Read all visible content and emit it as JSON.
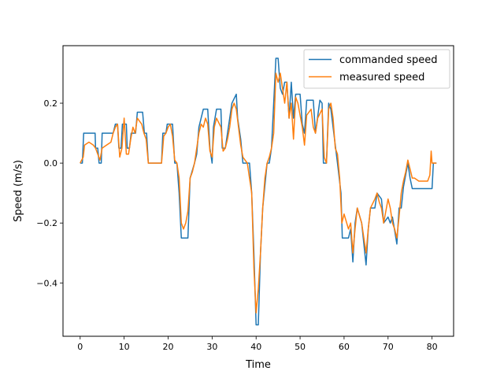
{
  "chart_data": {
    "type": "line",
    "title": "",
    "xlabel": "Time",
    "ylabel": "Speed (m/s)",
    "xlim": [
      -3.9,
      84.9
    ],
    "ylim": [
      -0.578,
      0.392
    ],
    "xticks": [
      0,
      10,
      20,
      30,
      40,
      50,
      60,
      70,
      80
    ],
    "yticks": [
      -0.4,
      -0.2,
      0.0,
      0.2
    ],
    "ytick_labels": [
      "−0.4",
      "−0.2",
      "0.0",
      "0.2"
    ],
    "grid": false,
    "legend_position": "top-right",
    "series": [
      {
        "name": "commanded speed",
        "color": "#1f77b4",
        "points": [
          [
            0,
            0
          ],
          [
            0.5,
            0
          ],
          [
            0.8,
            0.1
          ],
          [
            3.4,
            0.1
          ],
          [
            3.5,
            0.05
          ],
          [
            4,
            0.05
          ],
          [
            4.3,
            0
          ],
          [
            4.8,
            0
          ],
          [
            5,
            0.1
          ],
          [
            7.5,
            0.1
          ],
          [
            8,
            0.13
          ],
          [
            8.5,
            0.13
          ],
          [
            8.8,
            0.05
          ],
          [
            9.3,
            0.05
          ],
          [
            9.6,
            0.13
          ],
          [
            10.5,
            0.13
          ],
          [
            10.7,
            0.05
          ],
          [
            11.2,
            0.05
          ],
          [
            11.6,
            0.1
          ],
          [
            12.6,
            0.1
          ],
          [
            13,
            0.17
          ],
          [
            14.2,
            0.17
          ],
          [
            14.6,
            0.1
          ],
          [
            15.1,
            0.1
          ],
          [
            15.5,
            0
          ],
          [
            18.5,
            0
          ],
          [
            18.8,
            0.1
          ],
          [
            19.5,
            0.1
          ],
          [
            19.8,
            0.13
          ],
          [
            21,
            0.13
          ],
          [
            21.5,
            0
          ],
          [
            22,
            0
          ],
          [
            22.5,
            -0.1
          ],
          [
            23,
            -0.25
          ],
          [
            24.5,
            -0.25
          ],
          [
            25,
            -0.05
          ],
          [
            26,
            0
          ],
          [
            26.5,
            0.03
          ],
          [
            27,
            0.12
          ],
          [
            27.5,
            0.15
          ],
          [
            28,
            0.18
          ],
          [
            29,
            0.18
          ],
          [
            29.5,
            0.05
          ],
          [
            30,
            0
          ],
          [
            30.3,
            0.12
          ],
          [
            31,
            0.18
          ],
          [
            32,
            0.18
          ],
          [
            32.3,
            0.05
          ],
          [
            33,
            0.05
          ],
          [
            33.5,
            0.1
          ],
          [
            34,
            0.15
          ],
          [
            34.5,
            0.2
          ],
          [
            35.5,
            0.23
          ],
          [
            35.8,
            0.15
          ],
          [
            36.5,
            0.08
          ],
          [
            37,
            0
          ],
          [
            38.5,
            0
          ],
          [
            39,
            -0.1
          ],
          [
            39.5,
            -0.3
          ],
          [
            40,
            -0.54
          ],
          [
            40.5,
            -0.54
          ],
          [
            41,
            -0.3
          ],
          [
            41.5,
            -0.15
          ],
          [
            42.5,
            0
          ],
          [
            43,
            0
          ],
          [
            43.5,
            0.05
          ],
          [
            44.5,
            0.35
          ],
          [
            45,
            0.35
          ],
          [
            45.5,
            0.25
          ],
          [
            46,
            0.23
          ],
          [
            46.5,
            0.27
          ],
          [
            47,
            0.27
          ],
          [
            47.5,
            0.15
          ],
          [
            48,
            0.27
          ],
          [
            48.5,
            0.15
          ],
          [
            49,
            0.23
          ],
          [
            50,
            0.23
          ],
          [
            50.5,
            0.13
          ],
          [
            51,
            0.1
          ],
          [
            51.5,
            0.21
          ],
          [
            53,
            0.21
          ],
          [
            53.5,
            0.1
          ],
          [
            54.5,
            0.21
          ],
          [
            55,
            0.2
          ],
          [
            55.3,
            0
          ],
          [
            56,
            0
          ],
          [
            56.5,
            0.2
          ],
          [
            57,
            0.18
          ],
          [
            58.5,
            0
          ],
          [
            59.3,
            -0.1
          ],
          [
            59.6,
            -0.25
          ],
          [
            61,
            -0.25
          ],
          [
            61.5,
            -0.22
          ],
          [
            62,
            -0.33
          ],
          [
            62.5,
            -0.2
          ],
          [
            63,
            -0.15
          ],
          [
            64,
            -0.2
          ],
          [
            65,
            -0.34
          ],
          [
            65.5,
            -0.22
          ],
          [
            66,
            -0.15
          ],
          [
            67,
            -0.15
          ],
          [
            67.5,
            -0.1
          ],
          [
            68.5,
            -0.12
          ],
          [
            69,
            -0.2
          ],
          [
            70,
            -0.18
          ],
          [
            70.5,
            -0.2
          ],
          [
            71,
            -0.18
          ],
          [
            72,
            -0.27
          ],
          [
            72.5,
            -0.15
          ],
          [
            73,
            -0.15
          ],
          [
            73.5,
            -0.08
          ],
          [
            74.5,
            0
          ],
          [
            75,
            -0.05
          ],
          [
            75.5,
            -0.085
          ],
          [
            80,
            -0.085
          ],
          [
            80.3,
            0
          ],
          [
            81,
            0
          ]
        ]
      },
      {
        "name": "measured speed",
        "color": "#ff7f0e",
        "points": [
          [
            0,
            0
          ],
          [
            0.7,
            0.02
          ],
          [
            1,
            0.06
          ],
          [
            2,
            0.07
          ],
          [
            3,
            0.06
          ],
          [
            3.5,
            0.05
          ],
          [
            4,
            0.03
          ],
          [
            4.5,
            0.01
          ],
          [
            5,
            0.05
          ],
          [
            6,
            0.06
          ],
          [
            7,
            0.07
          ],
          [
            7.5,
            0.1
          ],
          [
            8,
            0.12
          ],
          [
            8.5,
            0.13
          ],
          [
            9,
            0.02
          ],
          [
            9.5,
            0.05
          ],
          [
            10,
            0.15
          ],
          [
            10.5,
            0.03
          ],
          [
            11,
            0.03
          ],
          [
            11.5,
            0.08
          ],
          [
            12,
            0.12
          ],
          [
            12.5,
            0.1
          ],
          [
            13,
            0.15
          ],
          [
            14,
            0.13
          ],
          [
            14.5,
            0.1
          ],
          [
            15,
            0.08
          ],
          [
            15.5,
            0
          ],
          [
            18.5,
            0
          ],
          [
            19,
            0.09
          ],
          [
            19.5,
            0.1
          ],
          [
            20,
            0.12
          ],
          [
            20.5,
            0.13
          ],
          [
            21,
            0.09
          ],
          [
            21.5,
            0.01
          ],
          [
            22,
            0
          ],
          [
            22.5,
            -0.05
          ],
          [
            23,
            -0.2
          ],
          [
            23.5,
            -0.22
          ],
          [
            24,
            -0.2
          ],
          [
            24.5,
            -0.16
          ],
          [
            25,
            -0.05
          ],
          [
            25.5,
            -0.03
          ],
          [
            26,
            0
          ],
          [
            27,
            0.1
          ],
          [
            27.5,
            0.13
          ],
          [
            28,
            0.12
          ],
          [
            28.5,
            0.15
          ],
          [
            29,
            0.13
          ],
          [
            29.5,
            0.04
          ],
          [
            30,
            0.02
          ],
          [
            30.5,
            0.12
          ],
          [
            31,
            0.15
          ],
          [
            32,
            0.12
          ],
          [
            32.5,
            0.04
          ],
          [
            33,
            0.05
          ],
          [
            33.5,
            0.08
          ],
          [
            34,
            0.12
          ],
          [
            34.5,
            0.18
          ],
          [
            35,
            0.2
          ],
          [
            35.5,
            0.18
          ],
          [
            36,
            0.12
          ],
          [
            36.5,
            0.06
          ],
          [
            37,
            0.02
          ],
          [
            38,
            0
          ],
          [
            39,
            -0.1
          ],
          [
            39.5,
            -0.35
          ],
          [
            40,
            -0.5
          ],
          [
            40.5,
            -0.42
          ],
          [
            41,
            -0.3
          ],
          [
            41.5,
            -0.15
          ],
          [
            42,
            -0.05
          ],
          [
            42.5,
            0
          ],
          [
            43,
            0.02
          ],
          [
            43.5,
            0.05
          ],
          [
            44,
            0.1
          ],
          [
            44.5,
            0.3
          ],
          [
            45,
            0.27
          ],
          [
            45.5,
            0.3
          ],
          [
            46,
            0.25
          ],
          [
            46.5,
            0.2
          ],
          [
            47,
            0.27
          ],
          [
            47.5,
            0.15
          ],
          [
            48,
            0.2
          ],
          [
            48.5,
            0.08
          ],
          [
            49,
            0.22
          ],
          [
            49.5,
            0.2
          ],
          [
            50,
            0.16
          ],
          [
            50.5,
            0.12
          ],
          [
            51,
            0.06
          ],
          [
            51.5,
            0.16
          ],
          [
            52.5,
            0.18
          ],
          [
            53,
            0.12
          ],
          [
            53.5,
            0.1
          ],
          [
            54,
            0.15
          ],
          [
            55,
            0.18
          ],
          [
            55.5,
            0.02
          ],
          [
            56,
            0
          ],
          [
            56.5,
            0.18
          ],
          [
            57,
            0.2
          ],
          [
            57.5,
            0.15
          ],
          [
            58,
            0.05
          ],
          [
            58.5,
            0.03
          ],
          [
            59,
            -0.05
          ],
          [
            59.5,
            -0.2
          ],
          [
            60,
            -0.17
          ],
          [
            61,
            -0.22
          ],
          [
            61.5,
            -0.2
          ],
          [
            62,
            -0.3
          ],
          [
            62.5,
            -0.22
          ],
          [
            63,
            -0.15
          ],
          [
            64,
            -0.2
          ],
          [
            64.5,
            -0.25
          ],
          [
            65,
            -0.3
          ],
          [
            65.5,
            -0.22
          ],
          [
            66,
            -0.15
          ],
          [
            67,
            -0.12
          ],
          [
            67.5,
            -0.1
          ],
          [
            68,
            -0.13
          ],
          [
            68.5,
            -0.15
          ],
          [
            69,
            -0.2
          ],
          [
            69.5,
            -0.16
          ],
          [
            70,
            -0.12
          ],
          [
            70.5,
            -0.15
          ],
          [
            71,
            -0.2
          ],
          [
            71.5,
            -0.22
          ],
          [
            72,
            -0.25
          ],
          [
            72.5,
            -0.18
          ],
          [
            73,
            -0.1
          ],
          [
            73.5,
            -0.06
          ],
          [
            74,
            -0.03
          ],
          [
            74.5,
            0.01
          ],
          [
            75,
            -0.02
          ],
          [
            75.5,
            -0.05
          ],
          [
            76,
            -0.05
          ],
          [
            77,
            -0.06
          ],
          [
            78,
            -0.06
          ],
          [
            79,
            -0.06
          ],
          [
            79.5,
            -0.04
          ],
          [
            79.8,
            0.04
          ],
          [
            80,
            0
          ],
          [
            81,
            0
          ]
        ]
      }
    ]
  }
}
